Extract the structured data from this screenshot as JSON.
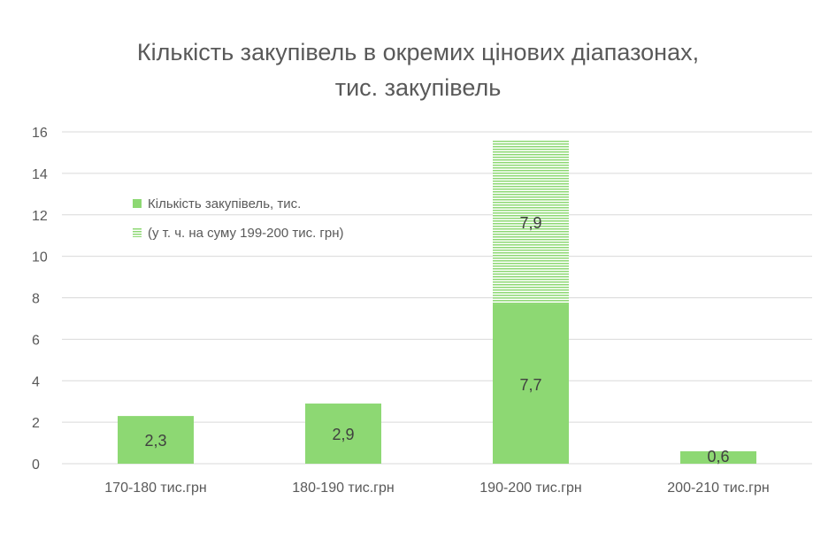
{
  "chart_data": {
    "type": "bar",
    "stacked": true,
    "title_line1": "Кількість закупівель в окремих цінових діапазонах,",
    "title_line2": "тис. закупівель",
    "xlabel": "",
    "ylabel": "",
    "categories": [
      "170-180 тис.грн",
      "180-190 тис.грн",
      "190-200 тис.грн",
      "200-210 тис.грн"
    ],
    "series": [
      {
        "name": "Кількість закупівель, тис.",
        "values": [
          2.3,
          2.9,
          7.7,
          0.6
        ],
        "labels": [
          "2,3",
          "2,9",
          "7,7",
          "0,6"
        ],
        "color": "#8dd873",
        "pattern": "solid"
      },
      {
        "name": "(у т. ч. на суму 199-200 тис. грн)",
        "values": [
          0,
          0,
          7.9,
          0
        ],
        "labels": [
          "",
          "",
          "7,9",
          ""
        ],
        "color": "#8dd873",
        "pattern": "horizontal-stripes"
      }
    ],
    "ylim": [
      0,
      16
    ],
    "yticks": [
      0,
      2,
      4,
      6,
      8,
      10,
      12,
      14,
      16
    ],
    "grid": true,
    "legend_position": "inside-top-left"
  }
}
